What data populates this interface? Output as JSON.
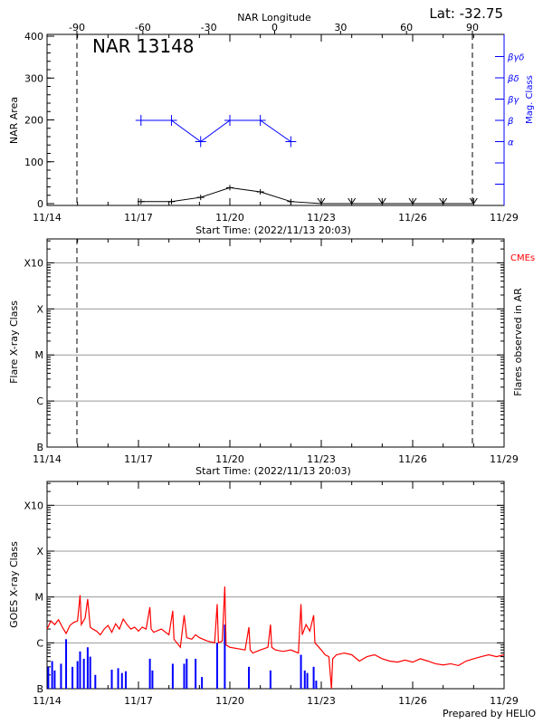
{
  "header": {
    "lat_label": "Lat: -32.75",
    "region_title": "NAR 13148",
    "prepared_by": "Prepared by HELIO"
  },
  "colors": {
    "area": "#000000",
    "mag_class": "#0000ff",
    "goes_flux": "#ff0000",
    "flares": "#0000ff",
    "cmes": "#ff0000",
    "grid": "#999999"
  },
  "chart_data": [
    {
      "type": "line",
      "xlabel": "Start Time: (2022/11/13 20:03)",
      "ylabel": "NAR Area",
      "y2label": "Mag. Class",
      "top_axis_label": "NAR Longitude",
      "xlim": [
        "2022-11-14T00:00",
        "2022-11-29T00:00"
      ],
      "x_tick_labels": [
        "11/14",
        "11/17",
        "11/20",
        "11/23",
        "11/26",
        "11/29"
      ],
      "ylim": [
        0,
        400
      ],
      "y_ticks": [
        0,
        100,
        200,
        300,
        400
      ],
      "top_ticks": [
        -90,
        -60,
        -30,
        0,
        30,
        60,
        90
      ],
      "limb_longitudes": [
        -90,
        90
      ],
      "mag_class_ticks": [
        "",
        "",
        "α",
        "β",
        "βγ",
        "βδ",
        "βγδ"
      ],
      "series": [
        {
          "name": "NAR Area",
          "points": [
            [
              "2022-11-17T02:00",
              5
            ],
            [
              "2022-11-18T02:00",
              5
            ],
            [
              "2022-11-19T01:00",
              15
            ],
            [
              "2022-11-20T00:00",
              38
            ],
            [
              "2022-11-21T00:00",
              28
            ],
            [
              "2022-11-22T00:00",
              5
            ],
            [
              "2022-11-23T00:00",
              0
            ],
            [
              "2022-11-24T00:00",
              0
            ],
            [
              "2022-11-25T00:00",
              0
            ],
            [
              "2022-11-26T00:00",
              0
            ],
            [
              "2022-11-27T00:00",
              0
            ],
            [
              "2022-11-28T00:00",
              0
            ]
          ]
        },
        {
          "name": "Mag. Class",
          "points": [
            [
              "2022-11-17T02:00",
              "β"
            ],
            [
              "2022-11-18T02:00",
              "β"
            ],
            [
              "2022-11-19T01:00",
              "α"
            ],
            [
              "2022-11-20T00:00",
              "β"
            ],
            [
              "2022-11-21T00:00",
              "β"
            ],
            [
              "2022-11-22T00:00",
              "α"
            ]
          ]
        }
      ]
    },
    {
      "type": "scatter",
      "xlabel": "Start Time: (2022/11/13 20:03)",
      "ylabel": "Flare X-ray Class",
      "y2label": "Flares observed in AR",
      "legend": "CMEs",
      "y_tick_labels": [
        "B",
        "C",
        "M",
        "X",
        "X10"
      ],
      "x_tick_labels": [
        "11/14",
        "11/17",
        "11/20",
        "11/23",
        "11/26",
        "11/29"
      ],
      "grid": true,
      "points": []
    },
    {
      "type": "line",
      "ylabel": "GOES X-ray Class",
      "y_scale": "log",
      "y_tick_labels": [
        "B",
        "C",
        "M",
        "X",
        "X10"
      ],
      "x_tick_labels": [
        "11/14",
        "11/17",
        "11/20",
        "11/23",
        "11/26",
        "11/29"
      ],
      "grid": true,
      "flux_series": [
        [
          "2022-11-14T00:00",
          2e-06
        ],
        [
          "2022-11-14T03:00",
          3e-06
        ],
        [
          "2022-11-14T06:00",
          2.5e-06
        ],
        [
          "2022-11-14T09:00",
          3.2e-06
        ],
        [
          "2022-11-14T12:00",
          2.2e-06
        ],
        [
          "2022-11-14T15:00",
          1.6e-06
        ],
        [
          "2022-11-14T18:00",
          2.4e-06
        ],
        [
          "2022-11-14T21:00",
          2.8e-06
        ],
        [
          "2022-11-15T00:00",
          3e-06
        ],
        [
          "2022-11-15T02:00",
          1.1e-05
        ],
        [
          "2022-11-15T03:00",
          2.5e-06
        ],
        [
          "2022-11-15T06:00",
          3.5e-06
        ],
        [
          "2022-11-15T08:00",
          9e-06
        ],
        [
          "2022-11-15T10:00",
          2.2e-06
        ],
        [
          "2022-11-15T12:00",
          2e-06
        ],
        [
          "2022-11-15T15:00",
          1.8e-06
        ],
        [
          "2022-11-15T18:00",
          1.5e-06
        ],
        [
          "2022-11-15T21:00",
          2e-06
        ],
        [
          "2022-11-16T00:00",
          2.4e-06
        ],
        [
          "2022-11-16T03:00",
          1.7e-06
        ],
        [
          "2022-11-16T06:00",
          2.6e-06
        ],
        [
          "2022-11-16T09:00",
          2e-06
        ],
        [
          "2022-11-16T12:00",
          3.3e-06
        ],
        [
          "2022-11-16T15:00",
          2.5e-06
        ],
        [
          "2022-11-16T18:00",
          2e-06
        ],
        [
          "2022-11-16T21:00",
          2.2e-06
        ],
        [
          "2022-11-17T00:00",
          1.8e-06
        ],
        [
          "2022-11-17T03:00",
          2.2e-06
        ],
        [
          "2022-11-17T06:00",
          2e-06
        ],
        [
          "2022-11-17T09:00",
          6e-06
        ],
        [
          "2022-11-17T10:00",
          2e-06
        ],
        [
          "2022-11-17T12:00",
          1.7e-06
        ],
        [
          "2022-11-17T18:00",
          2e-06
        ],
        [
          "2022-11-18T00:00",
          1.5e-06
        ],
        [
          "2022-11-18T03:00",
          5e-06
        ],
        [
          "2022-11-18T04:00",
          1.2e-06
        ],
        [
          "2022-11-18T09:00",
          8e-07
        ],
        [
          "2022-11-18T12:00",
          4e-06
        ],
        [
          "2022-11-18T14:00",
          1.3e-06
        ],
        [
          "2022-11-18T18:00",
          1.2e-06
        ],
        [
          "2022-11-18T21:00",
          1.5e-06
        ],
        [
          "2022-11-19T00:00",
          1.3e-06
        ],
        [
          "2022-11-19T06:00",
          1.1e-06
        ],
        [
          "2022-11-19T12:00",
          1e-06
        ],
        [
          "2022-11-19T14:00",
          7e-06
        ],
        [
          "2022-11-19T15:00",
          1e-06
        ],
        [
          "2022-11-19T18:00",
          1.1e-06
        ],
        [
          "2022-11-19T20:00",
          1.7e-05
        ],
        [
          "2022-11-19T21:00",
          9e-07
        ],
        [
          "2022-11-20T00:00",
          8e-07
        ],
        [
          "2022-11-20T06:00",
          7.5e-07
        ],
        [
          "2022-11-20T12:00",
          7e-07
        ],
        [
          "2022-11-20T15:00",
          2.2e-06
        ],
        [
          "2022-11-20T16:00",
          7e-07
        ],
        [
          "2022-11-20T18:00",
          6e-07
        ],
        [
          "2022-11-21T00:00",
          7e-07
        ],
        [
          "2022-11-21T06:00",
          8e-07
        ],
        [
          "2022-11-21T08:00",
          2.5e-06
        ],
        [
          "2022-11-21T09:00",
          8e-07
        ],
        [
          "2022-11-21T12:00",
          7e-07
        ],
        [
          "2022-11-21T18:00",
          6.5e-07
        ],
        [
          "2022-11-22T00:00",
          7e-07
        ],
        [
          "2022-11-22T06:00",
          6e-07
        ],
        [
          "2022-11-22T08:00",
          7e-06
        ],
        [
          "2022-11-22T09:00",
          1.5e-06
        ],
        [
          "2022-11-22T12:00",
          2.5e-06
        ],
        [
          "2022-11-22T15:00",
          1.8e-06
        ],
        [
          "2022-11-22T18:00",
          4e-06
        ],
        [
          "2022-11-22T19:00",
          1e-06
        ],
        [
          "2022-11-23T00:00",
          7e-07
        ],
        [
          "2022-11-23T03:00",
          5.5e-07
        ],
        [
          "2022-11-23T06:00",
          5e-07
        ],
        [
          "2022-11-23T08:00",
          1e-07
        ],
        [
          "2022-11-23T09:00",
          4.5e-07
        ],
        [
          "2022-11-23T12:00",
          5.5e-07
        ],
        [
          "2022-11-23T18:00",
          6e-07
        ],
        [
          "2022-11-24T00:00",
          5.5e-07
        ],
        [
          "2022-11-24T06:00",
          4e-07
        ],
        [
          "2022-11-24T12:00",
          5e-07
        ],
        [
          "2022-11-24T18:00",
          5.5e-07
        ],
        [
          "2022-11-25T00:00",
          4.5e-07
        ],
        [
          "2022-11-25T06:00",
          4e-07
        ],
        [
          "2022-11-25T12:00",
          3.8e-07
        ],
        [
          "2022-11-25T18:00",
          4.2e-07
        ],
        [
          "2022-11-26T00:00",
          3.8e-07
        ],
        [
          "2022-11-26T06:00",
          4.5e-07
        ],
        [
          "2022-11-26T12:00",
          4e-07
        ],
        [
          "2022-11-26T18:00",
          3.5e-07
        ],
        [
          "2022-11-27T00:00",
          3.3e-07
        ],
        [
          "2022-11-27T06:00",
          3.5e-07
        ],
        [
          "2022-11-27T12:00",
          3.2e-07
        ],
        [
          "2022-11-27T18:00",
          4e-07
        ],
        [
          "2022-11-28T00:00",
          4.5e-07
        ],
        [
          "2022-11-28T06:00",
          5e-07
        ],
        [
          "2022-11-28T12:00",
          5.5e-07
        ],
        [
          "2022-11-28T18:00",
          5e-07
        ],
        [
          "2022-11-29T00:00",
          5.5e-07
        ]
      ],
      "flares": [
        [
          "2022-11-14T01:00",
          3e-07
        ],
        [
          "2022-11-14T04:00",
          4e-07
        ],
        [
          "2022-11-14T06:00",
          2.5e-07
        ],
        [
          "2022-11-14T11:00",
          3.5e-07
        ],
        [
          "2022-11-14T15:00",
          1.2e-06
        ],
        [
          "2022-11-14T20:00",
          3e-07
        ],
        [
          "2022-11-15T00:00",
          4e-07
        ],
        [
          "2022-11-15T02:00",
          6.5e-07
        ],
        [
          "2022-11-15T05:00",
          4.5e-07
        ],
        [
          "2022-11-15T08:00",
          8e-07
        ],
        [
          "2022-11-15T10:00",
          5e-07
        ],
        [
          "2022-11-15T14:00",
          2e-07
        ],
        [
          "2022-11-16T03:00",
          2.6e-07
        ],
        [
          "2022-11-16T08:00",
          2.8e-07
        ],
        [
          "2022-11-16T11:00",
          2.2e-07
        ],
        [
          "2022-11-16T14:00",
          2.4e-07
        ],
        [
          "2022-11-17T09:00",
          4.5e-07
        ],
        [
          "2022-11-17T11:00",
          2.5e-07
        ],
        [
          "2022-11-18T03:00",
          3.5e-07
        ],
        [
          "2022-11-18T12:00",
          3.5e-07
        ],
        [
          "2022-11-18T14:00",
          4.5e-07
        ],
        [
          "2022-11-18T21:00",
          4.5e-07
        ],
        [
          "2022-11-19T02:00",
          1.8e-07
        ],
        [
          "2022-11-19T14:00",
          1e-06
        ],
        [
          "2022-11-19T20:00",
          2.5e-06
        ],
        [
          "2022-11-20T15:00",
          3e-07
        ],
        [
          "2022-11-21T08:00",
          2.5e-07
        ],
        [
          "2022-11-22T08:00",
          5.5e-07
        ],
        [
          "2022-11-22T11:00",
          2.5e-07
        ],
        [
          "2022-11-22T13:00",
          2.2e-07
        ],
        [
          "2022-11-22T18:00",
          3e-07
        ],
        [
          "2022-11-22T20:00",
          1.5e-07
        ]
      ]
    }
  ]
}
